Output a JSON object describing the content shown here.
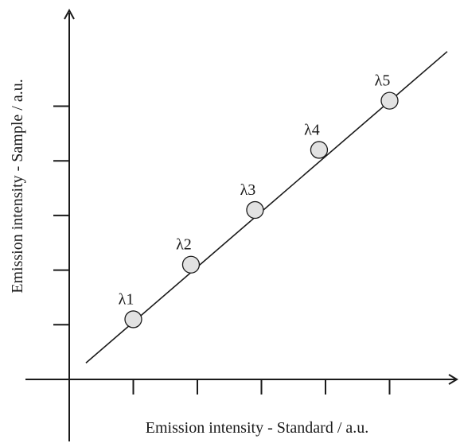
{
  "chart_data": {
    "type": "scatter",
    "xlabel": "Emission intensity - Standard / a.u.",
    "ylabel": "Emission intensity - Sample / a.u.",
    "x_ticks": [
      1,
      2,
      3,
      4,
      5
    ],
    "y_ticks": [
      1,
      2,
      3,
      4,
      5
    ],
    "xlim": [
      0,
      6.1
    ],
    "ylim": [
      0,
      6.1
    ],
    "grid": false,
    "legend": "none",
    "points": [
      {
        "label": "λ1",
        "x": 1.0,
        "y": 1.1
      },
      {
        "label": "λ2",
        "x": 1.9,
        "y": 2.1
      },
      {
        "label": "λ3",
        "x": 2.9,
        "y": 3.1
      },
      {
        "label": "λ4",
        "x": 3.9,
        "y": 4.2
      },
      {
        "label": "λ5",
        "x": 5.0,
        "y": 5.1
      }
    ],
    "fit_line": {
      "x": [
        0.26,
        5.9
      ],
      "y": [
        0.3,
        6.0
      ]
    },
    "colors": {
      "axis": "#1a1a1a",
      "point_fill": "#e2e2e2"
    }
  }
}
